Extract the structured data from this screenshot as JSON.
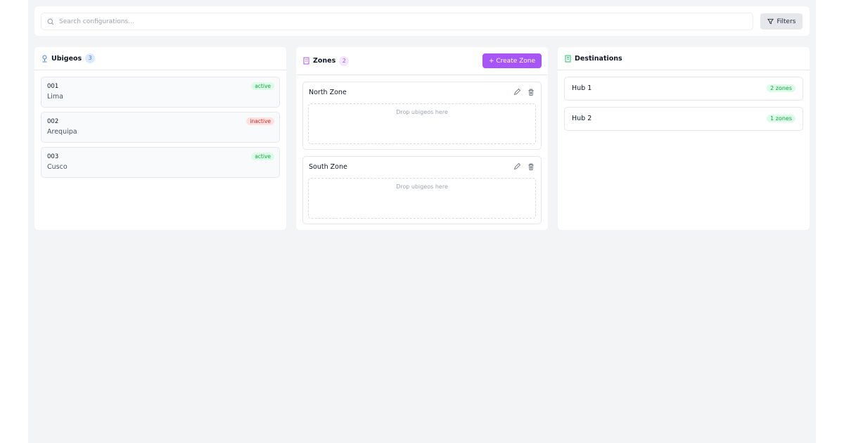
{
  "search": {
    "placeholder": "Search configurations...",
    "value": ""
  },
  "filters_label": "Filters",
  "ubigeos": {
    "title": "Ubigeos",
    "count": "3",
    "items": [
      {
        "code": "001",
        "name": "Lima",
        "status": "active"
      },
      {
        "code": "002",
        "name": "Arequipa",
        "status": "inactive"
      },
      {
        "code": "003",
        "name": "Cusco",
        "status": "active"
      }
    ]
  },
  "zones": {
    "title": "Zones",
    "count": "2",
    "create_label": "+ Create Zone",
    "drop_hint": "Drop ubigeos here",
    "items": [
      {
        "name": "North Zone"
      },
      {
        "name": "South Zone"
      }
    ]
  },
  "destinations": {
    "title": "Destinations",
    "items": [
      {
        "name": "Hub 1",
        "zones": "2 zones"
      },
      {
        "name": "Hub 2",
        "zones": "1 zones"
      }
    ]
  },
  "colors": {
    "accent": "#a855f7",
    "ubigeo_icon": "#3b82f6",
    "destination_icon": "#22c55e",
    "active": "#16a34a",
    "inactive": "#dc2626"
  }
}
